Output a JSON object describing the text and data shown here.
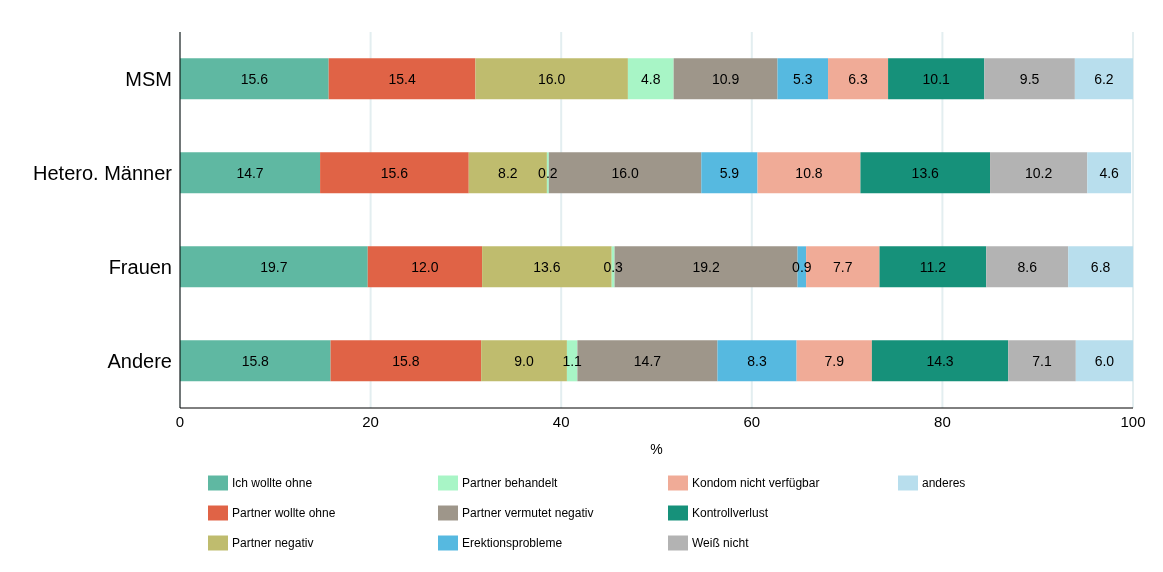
{
  "chart_data": {
    "type": "bar",
    "orientation": "horizontal",
    "stacked": true,
    "categories": [
      "MSM",
      "Hetero. Männer",
      "Frauen",
      "Andere"
    ],
    "xlabel": "%",
    "xlim": [
      0,
      100
    ],
    "xticks": [
      0,
      20,
      40,
      60,
      80,
      100
    ],
    "grid": "x",
    "legend": "bottom",
    "series": [
      {
        "name": "Ich wollte ohne",
        "color": "#5fb8a2",
        "values": [
          15.6,
          14.7,
          19.7,
          15.8
        ],
        "value_labels": [
          "15.6",
          "14.7",
          "19.7",
          "15.8"
        ]
      },
      {
        "name": "Partner wollte ohne",
        "color": "#e06346",
        "values": [
          15.4,
          15.6,
          12.0,
          15.8
        ],
        "value_labels": [
          "15.4",
          "15.6",
          "12.0",
          "15.8"
        ]
      },
      {
        "name": "Partner negativ",
        "color": "#bfbc6e",
        "values": [
          16.0,
          8.2,
          13.6,
          9.0
        ],
        "value_labels": [
          "16.0",
          "8.2",
          "13.6",
          "9.0"
        ]
      },
      {
        "name": "Partner behandelt",
        "color": "#a8f5c6",
        "values": [
          4.8,
          0.2,
          0.3,
          1.1
        ],
        "value_labels": [
          "4.8",
          "0.2",
          "0.3",
          "1.1"
        ]
      },
      {
        "name": "Partner vermutet negativ",
        "color": "#9e968a",
        "values": [
          10.9,
          16.0,
          19.2,
          14.7
        ],
        "value_labels": [
          "10.9",
          "16.0",
          "19.2",
          "14.7"
        ]
      },
      {
        "name": "Erektionsprobleme",
        "color": "#56b9e0",
        "values": [
          5.3,
          5.9,
          0.9,
          8.3
        ],
        "value_labels": [
          "5.3",
          "5.9",
          "0.9",
          "8.3"
        ]
      },
      {
        "name": "Kondom nicht verfügbar",
        "color": "#f0ab97",
        "values": [
          6.3,
          10.8,
          7.7,
          7.9
        ],
        "value_labels": [
          "6.3",
          "10.8",
          "7.7",
          "7.9"
        ]
      },
      {
        "name": "Kontrollverlust",
        "color": "#16917a",
        "values": [
          10.1,
          13.6,
          11.2,
          14.3
        ],
        "value_labels": [
          "10.1",
          "13.6",
          "11.2",
          "14.3"
        ]
      },
      {
        "name": "Weiß nicht",
        "color": "#b3b3b3",
        "values": [
          9.5,
          10.2,
          8.6,
          7.1
        ],
        "value_labels": [
          "9.5",
          "10.2",
          "8.6",
          "7.1"
        ]
      },
      {
        "name": "anderes",
        "color": "#b8deed",
        "values": [
          6.2,
          4.6,
          6.8,
          6.0
        ],
        "value_labels": [
          "6.2",
          "4.6",
          "6.8",
          "6.0"
        ]
      }
    ]
  }
}
